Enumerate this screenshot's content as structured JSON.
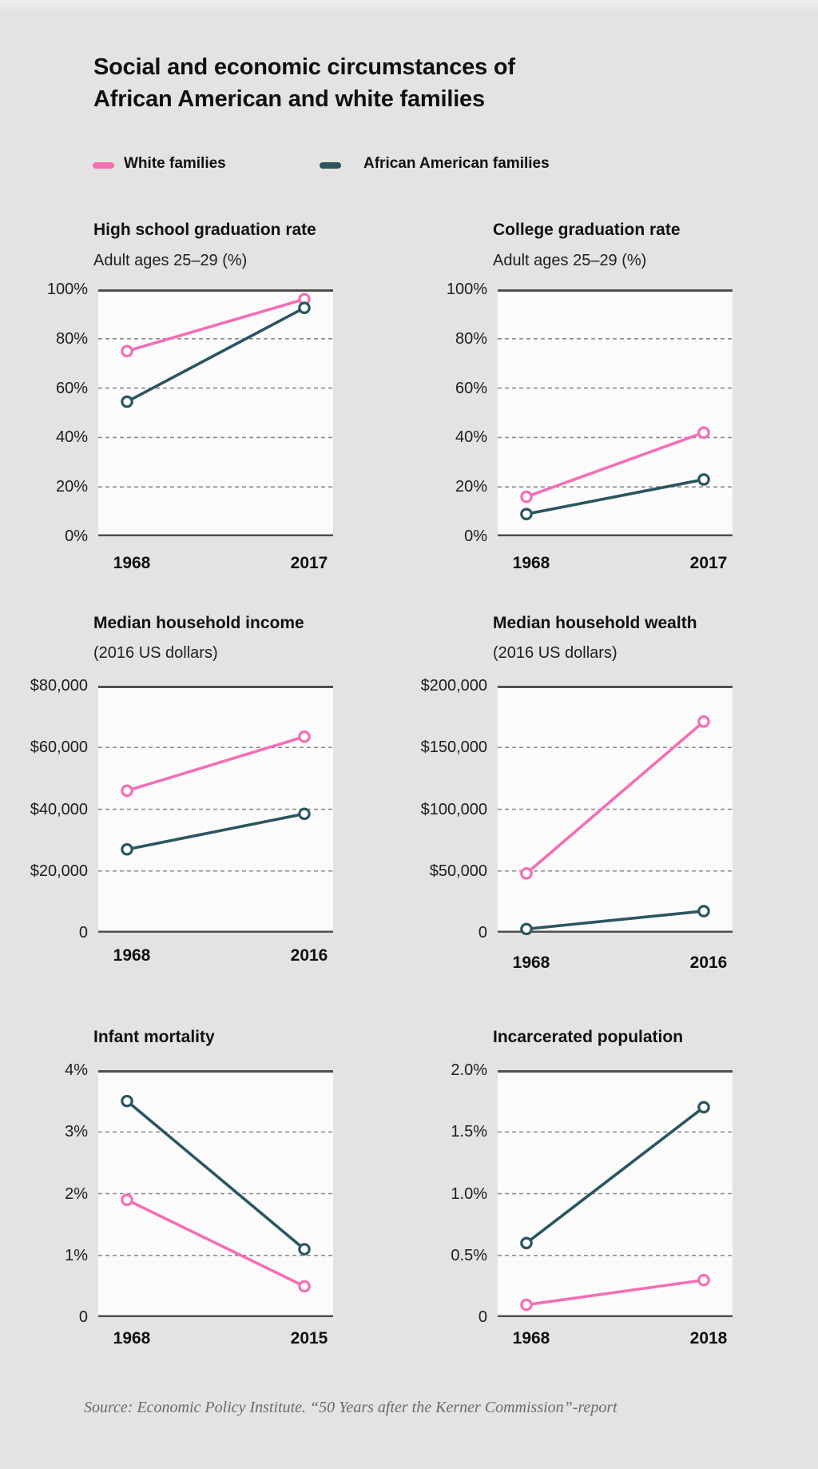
{
  "page": {
    "title_line1": "Social and economic circumstances of",
    "title_line2": "African American and white families",
    "source": "Source: Economic Policy Institute. “50 Years after the Kerner Commission”-report"
  },
  "legend": {
    "items": [
      {
        "label": "White families",
        "color": "#f56eb4"
      },
      {
        "label": "African American families",
        "color": "#2a5660"
      }
    ]
  },
  "colors": {
    "white_families": "#f56eb4",
    "african_american_families": "#2a5660",
    "background": "#e4e2e2",
    "plot_background": "#fcfbfb",
    "axis_line": "#4f4f4f",
    "grid_dash": "#8a8a8a"
  },
  "chart_data": [
    {
      "type": "line",
      "title": "High school graduation rate",
      "subtitle": "Adult ages 25–29 (%)",
      "x": [
        1968,
        2017
      ],
      "x_labels": [
        "1968",
        "2017"
      ],
      "y_ticks": [
        "100%",
        "80%",
        "60%",
        "40%",
        "20%",
        "0%"
      ],
      "y_min": 0,
      "y_max": 100,
      "grid": true,
      "series": [
        {
          "name": "White families",
          "color_key": "white_families",
          "values": [
            75,
            96
          ]
        },
        {
          "name": "African American families",
          "color_key": "african_american_families",
          "values": [
            54.5,
            92.5
          ]
        }
      ]
    },
    {
      "type": "line",
      "title": "College graduation rate",
      "subtitle": "Adult ages 25–29 (%)",
      "x": [
        1968,
        2017
      ],
      "x_labels": [
        "1968",
        "2017"
      ],
      "y_ticks": [
        "100%",
        "80%",
        "60%",
        "40%",
        "20%",
        "0%"
      ],
      "y_min": 0,
      "y_max": 100,
      "grid": true,
      "series": [
        {
          "name": "White families",
          "color_key": "white_families",
          "values": [
            16,
            42
          ]
        },
        {
          "name": "African American families",
          "color_key": "african_american_families",
          "values": [
            9,
            23
          ]
        }
      ]
    },
    {
      "type": "line",
      "title": "Median household income",
      "subtitle": "(2016 US dollars)",
      "x": [
        1968,
        2016
      ],
      "x_labels": [
        "1968",
        "2016"
      ],
      "y_ticks": [
        "$80,000",
        "$60,000",
        "$40,000",
        "$20,000",
        "0"
      ],
      "y_min": 0,
      "y_max": 80000,
      "grid": true,
      "series": [
        {
          "name": "White families",
          "color_key": "white_families",
          "values": [
            46000,
            63500
          ]
        },
        {
          "name": "African American families",
          "color_key": "african_american_families",
          "values": [
            27000,
            38500
          ]
        }
      ]
    },
    {
      "type": "line",
      "title": "Median household wealth",
      "subtitle": "(2016 US dollars)",
      "x": [
        1968,
        2016
      ],
      "x_labels": [
        "1968",
        "2016"
      ],
      "y_ticks": [
        "$200,000",
        "$150,000",
        "$100,000",
        "$50,000",
        "0"
      ],
      "y_min": 0,
      "y_max": 200000,
      "grid": true,
      "series": [
        {
          "name": "White families",
          "color_key": "white_families",
          "values": [
            48000,
            171000
          ]
        },
        {
          "name": "African American families",
          "color_key": "african_american_families",
          "values": [
            3000,
            17500
          ]
        }
      ]
    },
    {
      "type": "line",
      "title": "Infant mortality",
      "x": [
        1968,
        2015
      ],
      "x_labels": [
        "1968",
        "2015"
      ],
      "y_ticks": [
        "4%",
        "3%",
        "2%",
        "1%",
        "0"
      ],
      "y_min": 0,
      "y_max": 4,
      "grid": true,
      "series": [
        {
          "name": "White families",
          "color_key": "white_families",
          "values": [
            1.9,
            0.5
          ]
        },
        {
          "name": "African American families",
          "color_key": "african_american_families",
          "values": [
            3.5,
            1.1
          ]
        }
      ]
    },
    {
      "type": "line",
      "title": "Incarcerated population",
      "x": [
        1968,
        2018
      ],
      "x_labels": [
        "1968",
        "2018"
      ],
      "y_ticks": [
        "2.0%",
        "1.5%",
        "1.0%",
        "0.5%",
        "0"
      ],
      "y_min": 0,
      "y_max": 2,
      "grid": true,
      "series": [
        {
          "name": "White families",
          "color_key": "white_families",
          "values": [
            0.1,
            0.3
          ]
        },
        {
          "name": "African American families",
          "color_key": "african_american_families",
          "values": [
            0.6,
            1.7
          ]
        }
      ]
    }
  ]
}
